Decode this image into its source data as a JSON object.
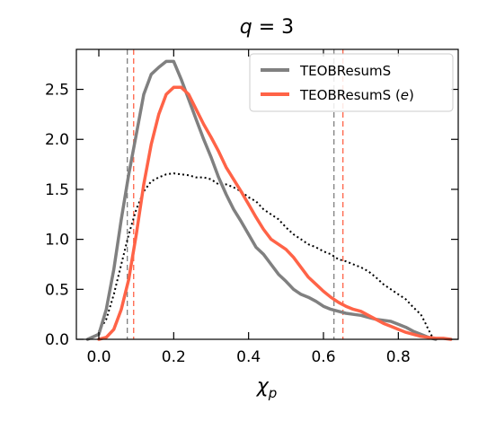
{
  "chart_data": {
    "type": "line",
    "title": "q = 3",
    "xlabel": "χp",
    "ylabel": "",
    "xlim": [
      -0.06,
      0.96
    ],
    "ylim": [
      0.0,
      2.9
    ],
    "x_ticks": [
      0.0,
      0.2,
      0.4,
      0.6,
      0.8
    ],
    "x_tick_labels": [
      "0.0",
      "0.2",
      "0.4",
      "0.6",
      "0.8"
    ],
    "y_ticks": [
      0.0,
      0.5,
      1.0,
      1.5,
      2.0,
      2.5
    ],
    "y_tick_labels": [
      "0.0",
      "0.5",
      "1.0",
      "1.5",
      "2.0",
      "2.5"
    ],
    "grid": false,
    "legend_position": "top-right",
    "series": [
      {
        "name": "TEOBResumS",
        "color": "#808080",
        "style": "solid",
        "x": [
          -0.03,
          0.0,
          0.02,
          0.04,
          0.06,
          0.08,
          0.1,
          0.12,
          0.14,
          0.16,
          0.18,
          0.2,
          0.22,
          0.24,
          0.26,
          0.28,
          0.3,
          0.32,
          0.34,
          0.36,
          0.38,
          0.4,
          0.42,
          0.44,
          0.46,
          0.48,
          0.5,
          0.52,
          0.54,
          0.56,
          0.58,
          0.6,
          0.62,
          0.64,
          0.66,
          0.68,
          0.7,
          0.72,
          0.74,
          0.76,
          0.78,
          0.8,
          0.82,
          0.84,
          0.86,
          0.88,
          0.9
        ],
        "values": [
          0.0,
          0.05,
          0.3,
          0.7,
          1.2,
          1.65,
          2.05,
          2.45,
          2.65,
          2.72,
          2.78,
          2.78,
          2.6,
          2.4,
          2.2,
          2.0,
          1.82,
          1.62,
          1.45,
          1.3,
          1.18,
          1.05,
          0.92,
          0.85,
          0.75,
          0.65,
          0.58,
          0.5,
          0.45,
          0.42,
          0.38,
          0.33,
          0.3,
          0.28,
          0.26,
          0.25,
          0.24,
          0.22,
          0.2,
          0.19,
          0.18,
          0.15,
          0.12,
          0.08,
          0.05,
          0.02,
          0.0
        ]
      },
      {
        "name": "TEOBResumS (e)",
        "color": "#ff6347",
        "style": "solid",
        "x": [
          0.0,
          0.02,
          0.04,
          0.06,
          0.08,
          0.1,
          0.12,
          0.14,
          0.16,
          0.18,
          0.2,
          0.22,
          0.24,
          0.26,
          0.28,
          0.3,
          0.32,
          0.34,
          0.36,
          0.38,
          0.4,
          0.42,
          0.44,
          0.46,
          0.48,
          0.5,
          0.52,
          0.54,
          0.56,
          0.58,
          0.6,
          0.62,
          0.64,
          0.66,
          0.68,
          0.7,
          0.72,
          0.74,
          0.76,
          0.78,
          0.8,
          0.82,
          0.84,
          0.86,
          0.88,
          0.9,
          0.92,
          0.94
        ],
        "values": [
          0.0,
          0.02,
          0.1,
          0.3,
          0.6,
          1.05,
          1.55,
          1.95,
          2.25,
          2.45,
          2.52,
          2.52,
          2.45,
          2.3,
          2.15,
          2.02,
          1.88,
          1.72,
          1.6,
          1.48,
          1.35,
          1.22,
          1.1,
          1.0,
          0.95,
          0.9,
          0.82,
          0.72,
          0.62,
          0.55,
          0.48,
          0.42,
          0.37,
          0.33,
          0.3,
          0.28,
          0.24,
          0.2,
          0.16,
          0.13,
          0.1,
          0.07,
          0.05,
          0.03,
          0.02,
          0.01,
          0.01,
          0.0
        ]
      },
      {
        "name": "",
        "color": "#000000",
        "style": "dotted",
        "x": [
          0.0,
          0.02,
          0.04,
          0.06,
          0.08,
          0.1,
          0.12,
          0.14,
          0.16,
          0.18,
          0.2,
          0.22,
          0.24,
          0.26,
          0.28,
          0.3,
          0.32,
          0.34,
          0.36,
          0.38,
          0.4,
          0.42,
          0.44,
          0.46,
          0.48,
          0.5,
          0.52,
          0.54,
          0.56,
          0.58,
          0.6,
          0.62,
          0.64,
          0.66,
          0.68,
          0.7,
          0.72,
          0.74,
          0.76,
          0.78,
          0.8,
          0.82,
          0.84,
          0.86,
          0.87,
          0.88,
          0.89,
          0.9
        ],
        "values": [
          0.08,
          0.2,
          0.45,
          0.75,
          1.05,
          1.3,
          1.48,
          1.58,
          1.62,
          1.65,
          1.66,
          1.65,
          1.64,
          1.62,
          1.62,
          1.6,
          1.55,
          1.55,
          1.52,
          1.48,
          1.42,
          1.38,
          1.3,
          1.25,
          1.2,
          1.12,
          1.05,
          1.0,
          0.95,
          0.92,
          0.88,
          0.85,
          0.8,
          0.78,
          0.75,
          0.72,
          0.68,
          0.62,
          0.55,
          0.5,
          0.45,
          0.4,
          0.32,
          0.25,
          0.18,
          0.1,
          0.03,
          0.0
        ]
      }
    ],
    "vertical_lines": [
      {
        "x": 0.076,
        "color": "#808080",
        "style": "dashed"
      },
      {
        "x": 0.093,
        "color": "#ff6347",
        "style": "dashed"
      },
      {
        "x": 0.628,
        "color": "#808080",
        "style": "dashed"
      },
      {
        "x": 0.652,
        "color": "#ff6347",
        "style": "dashed"
      }
    ]
  }
}
